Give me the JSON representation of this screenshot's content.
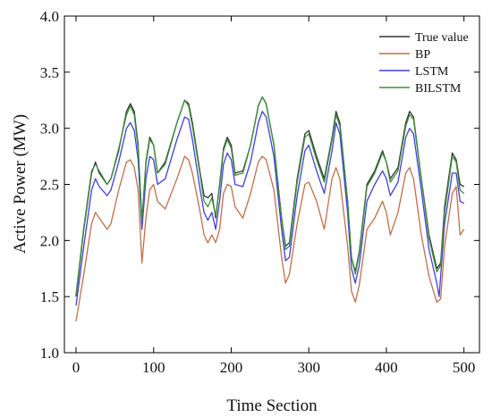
{
  "chart_data": {
    "type": "line",
    "title": "",
    "xlabel": "Time Section",
    "ylabel": "Active Power (MW)",
    "xlim": [
      -15,
      520
    ],
    "ylim": [
      1.0,
      4.0
    ],
    "xticks": [
      0,
      100,
      200,
      300,
      400,
      500
    ],
    "xtick_labels": [
      "0",
      "100",
      "200",
      "300",
      "400",
      "500"
    ],
    "yticks": [
      1.0,
      1.5,
      2.0,
      2.5,
      3.0,
      3.5,
      4.0
    ],
    "ytick_labels": [
      "1.0",
      "1.5",
      "2.0",
      "2.5",
      "3.0",
      "3.5",
      "4.0"
    ],
    "grid": false,
    "legend_position": "top-right",
    "series": [
      {
        "name": "True value",
        "color": "#333333",
        "x": [
          0,
          10,
          20,
          25,
          30,
          40,
          45,
          55,
          65,
          70,
          75,
          80,
          85,
          90,
          95,
          100,
          105,
          115,
          130,
          140,
          145,
          150,
          160,
          165,
          170,
          175,
          180,
          185,
          190,
          195,
          200,
          205,
          215,
          225,
          235,
          240,
          245,
          255,
          265,
          270,
          275,
          285,
          295,
          300,
          310,
          320,
          330,
          335,
          340,
          350,
          355,
          360,
          365,
          375,
          385,
          395,
          400,
          405,
          415,
          425,
          430,
          435,
          445,
          455,
          465,
          470,
          475,
          485,
          490,
          495,
          500
        ],
        "y": [
          1.5,
          2.1,
          2.6,
          2.7,
          2.6,
          2.5,
          2.55,
          2.8,
          3.15,
          3.22,
          3.15,
          2.85,
          2.15,
          2.7,
          2.92,
          2.85,
          2.6,
          2.7,
          3.05,
          3.25,
          3.22,
          3.05,
          2.6,
          2.4,
          2.38,
          2.42,
          2.2,
          2.5,
          2.82,
          2.92,
          2.85,
          2.6,
          2.62,
          2.85,
          3.2,
          3.28,
          3.22,
          2.85,
          2.2,
          1.95,
          1.98,
          2.55,
          2.95,
          2.98,
          2.75,
          2.55,
          2.92,
          3.15,
          3.05,
          2.35,
          1.85,
          1.72,
          1.9,
          2.5,
          2.62,
          2.8,
          2.7,
          2.55,
          2.65,
          3.05,
          3.15,
          3.1,
          2.55,
          2.05,
          1.75,
          1.8,
          2.3,
          2.78,
          2.72,
          2.5,
          2.48
        ]
      },
      {
        "name": "BP",
        "color": "#c0704a",
        "x": [
          0,
          10,
          20,
          25,
          30,
          40,
          45,
          55,
          65,
          70,
          75,
          80,
          85,
          90,
          95,
          100,
          105,
          115,
          130,
          140,
          145,
          150,
          160,
          165,
          170,
          175,
          180,
          185,
          190,
          195,
          200,
          205,
          215,
          225,
          235,
          240,
          245,
          255,
          265,
          270,
          275,
          285,
          295,
          300,
          310,
          320,
          330,
          335,
          340,
          350,
          355,
          360,
          365,
          375,
          385,
          395,
          400,
          405,
          415,
          425,
          430,
          435,
          445,
          455,
          465,
          470,
          475,
          485,
          490,
          495,
          500
        ],
        "y": [
          1.28,
          1.7,
          2.15,
          2.25,
          2.2,
          2.1,
          2.15,
          2.45,
          2.7,
          2.72,
          2.65,
          2.45,
          1.8,
          2.2,
          2.45,
          2.5,
          2.35,
          2.28,
          2.55,
          2.75,
          2.72,
          2.6,
          2.25,
          2.05,
          1.98,
          2.05,
          1.98,
          2.1,
          2.42,
          2.5,
          2.48,
          2.3,
          2.2,
          2.42,
          2.7,
          2.75,
          2.72,
          2.45,
          1.85,
          1.62,
          1.7,
          2.15,
          2.5,
          2.52,
          2.35,
          2.1,
          2.55,
          2.65,
          2.55,
          1.95,
          1.55,
          1.45,
          1.6,
          2.1,
          2.2,
          2.35,
          2.25,
          2.05,
          2.25,
          2.6,
          2.65,
          2.55,
          2.05,
          1.68,
          1.45,
          1.48,
          1.95,
          2.42,
          2.48,
          2.05,
          2.1
        ]
      },
      {
        "name": "LSTM",
        "color": "#3f3fdc",
        "x": [
          0,
          10,
          20,
          25,
          30,
          40,
          45,
          55,
          65,
          70,
          75,
          80,
          85,
          90,
          95,
          100,
          105,
          115,
          130,
          140,
          145,
          150,
          160,
          165,
          170,
          175,
          180,
          185,
          190,
          195,
          200,
          205,
          215,
          225,
          235,
          240,
          245,
          255,
          265,
          270,
          275,
          285,
          295,
          300,
          310,
          320,
          330,
          335,
          340,
          350,
          355,
          360,
          365,
          375,
          385,
          395,
          400,
          405,
          415,
          425,
          430,
          435,
          445,
          455,
          465,
          468,
          470,
          475,
          485,
          490,
          495,
          500
        ],
        "y": [
          1.42,
          1.95,
          2.45,
          2.55,
          2.48,
          2.4,
          2.45,
          2.7,
          3.0,
          3.05,
          2.98,
          2.72,
          2.1,
          2.55,
          2.75,
          2.72,
          2.5,
          2.55,
          2.9,
          3.1,
          3.08,
          2.9,
          2.45,
          2.25,
          2.18,
          2.25,
          2.1,
          2.35,
          2.68,
          2.78,
          2.72,
          2.5,
          2.48,
          2.7,
          3.05,
          3.15,
          3.1,
          2.75,
          2.1,
          1.82,
          1.85,
          2.4,
          2.8,
          2.85,
          2.62,
          2.42,
          2.8,
          3.05,
          2.95,
          2.25,
          1.75,
          1.62,
          1.78,
          2.35,
          2.5,
          2.62,
          2.55,
          2.4,
          2.52,
          2.92,
          3.0,
          2.95,
          2.45,
          1.92,
          1.62,
          1.5,
          1.68,
          2.15,
          2.6,
          2.6,
          2.35,
          2.33
        ]
      },
      {
        "name": "BILSTM",
        "color": "#3a8f3a",
        "x": [
          0,
          10,
          20,
          25,
          30,
          40,
          45,
          55,
          65,
          70,
          75,
          80,
          85,
          90,
          95,
          100,
          105,
          115,
          130,
          140,
          145,
          150,
          160,
          165,
          170,
          175,
          180,
          185,
          190,
          195,
          200,
          205,
          215,
          225,
          235,
          240,
          245,
          255,
          265,
          270,
          275,
          285,
          295,
          300,
          310,
          320,
          330,
          335,
          340,
          350,
          355,
          360,
          365,
          375,
          385,
          395,
          400,
          405,
          415,
          425,
          430,
          435,
          445,
          455,
          465,
          470,
          475,
          485,
          490,
          495,
          500
        ],
        "y": [
          1.52,
          2.12,
          2.62,
          2.68,
          2.62,
          2.5,
          2.55,
          2.82,
          3.12,
          3.2,
          3.12,
          2.82,
          2.18,
          2.68,
          2.9,
          2.85,
          2.6,
          2.68,
          3.05,
          3.25,
          3.2,
          3.02,
          2.58,
          2.35,
          2.3,
          2.38,
          2.22,
          2.48,
          2.8,
          2.9,
          2.82,
          2.58,
          2.6,
          2.85,
          3.2,
          3.28,
          3.22,
          2.85,
          2.2,
          1.92,
          1.95,
          2.52,
          2.92,
          2.95,
          2.72,
          2.52,
          2.9,
          3.12,
          3.02,
          2.35,
          1.85,
          1.7,
          1.88,
          2.48,
          2.6,
          2.78,
          2.7,
          2.52,
          2.62,
          3.02,
          3.12,
          3.08,
          2.55,
          2.02,
          1.72,
          1.78,
          2.25,
          2.75,
          2.7,
          2.45,
          2.42
        ]
      }
    ]
  }
}
